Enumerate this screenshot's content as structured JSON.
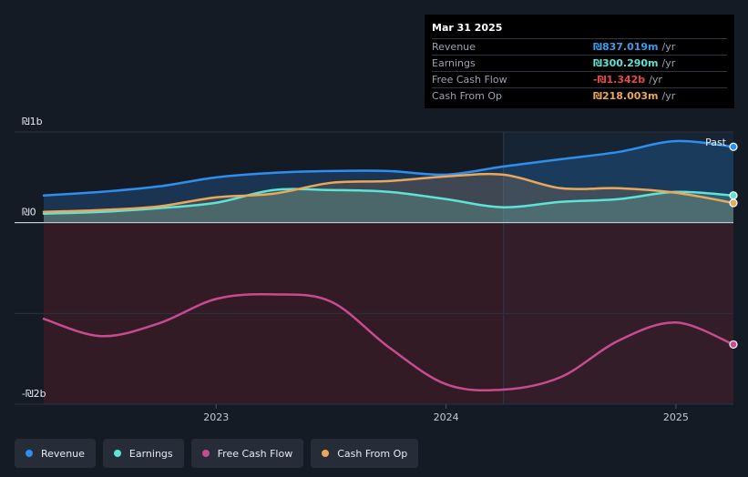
{
  "tooltip": {
    "date": "Mar 31 2025",
    "rows": [
      {
        "label": "Revenue",
        "value": "₪837.019m",
        "unit": "/yr",
        "color": "#3b9de9"
      },
      {
        "label": "Earnings",
        "value": "₪300.290m",
        "unit": "/yr",
        "color": "#5ee3d4"
      },
      {
        "label": "Free Cash Flow",
        "value": "-₪1.342b",
        "unit": "/yr",
        "color": "#e8484a"
      },
      {
        "label": "Cash From Op",
        "value": "₪218.003m",
        "unit": "/yr",
        "color": "#e9a85a"
      }
    ]
  },
  "legend": [
    {
      "label": "Revenue",
      "color": "#2d8ff0"
    },
    {
      "label": "Earnings",
      "color": "#5ee3d4"
    },
    {
      "label": "Free Cash Flow",
      "color": "#c74b8f"
    },
    {
      "label": "Cash From Op",
      "color": "#e9a85a"
    }
  ],
  "chart_data": {
    "type": "area",
    "ylabels": [
      "₪1b",
      "₪0",
      "-₪2b"
    ],
    "yticks_values": [
      1000,
      0,
      -2000
    ],
    "xtick_labels": [
      "2023",
      "2024",
      "2025"
    ],
    "xtick_values": [
      2023.0,
      2024.0,
      2025.0
    ],
    "xlim": [
      2022.25,
      2025.25
    ],
    "ylim": [
      -2000,
      1000
    ],
    "past_label": "Past",
    "past_start": 2024.25,
    "units": "₪ millions",
    "x": [
      2022.25,
      2022.5,
      2022.75,
      2023.0,
      2023.25,
      2023.5,
      2023.75,
      2024.0,
      2024.25,
      2024.5,
      2024.75,
      2025.0,
      2025.25
    ],
    "series": [
      {
        "name": "Revenue",
        "color": "#2d8ff0",
        "values": [
          300,
          340,
          400,
          500,
          550,
          570,
          570,
          530,
          620,
          700,
          780,
          900,
          837
        ]
      },
      {
        "name": "Earnings",
        "color": "#5ee3d4",
        "values": [
          100,
          120,
          160,
          220,
          360,
          360,
          340,
          260,
          170,
          230,
          260,
          340,
          300
        ]
      },
      {
        "name": "Free Cash Flow",
        "color": "#c74b8f",
        "values": [
          -1060,
          -1250,
          -1110,
          -840,
          -790,
          -870,
          -1370,
          -1780,
          -1840,
          -1700,
          -1300,
          -1100,
          -1342
        ]
      },
      {
        "name": "Cash From Op",
        "color": "#e9a85a",
        "values": [
          120,
          140,
          180,
          280,
          320,
          440,
          460,
          510,
          530,
          380,
          380,
          330,
          218
        ]
      }
    ]
  }
}
